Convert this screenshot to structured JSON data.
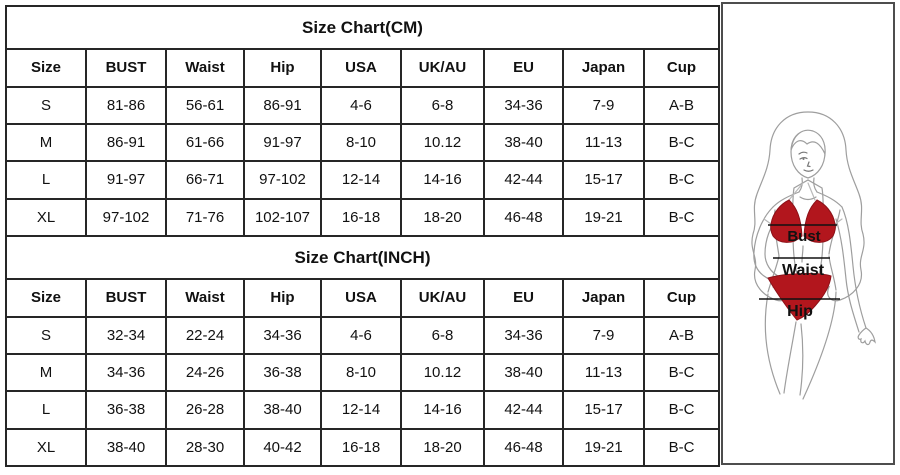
{
  "page": {
    "background": "#ffffff",
    "table_border_color": "#262626",
    "panel_border_color": "#4d4d4d"
  },
  "chart_data": [
    {
      "type": "table",
      "title": "Size Chart(CM)",
      "columns": [
        "Size",
        "BUST",
        "Waist",
        "Hip",
        "USA",
        "UK/AU",
        "EU",
        "Japan",
        "Cup"
      ],
      "rows": [
        [
          "S",
          "81-86",
          "56-61",
          "86-91",
          "4-6",
          "6-8",
          "34-36",
          "7-9",
          "A-B"
        ],
        [
          "M",
          "86-91",
          "61-66",
          "91-97",
          "8-10",
          "10.12",
          "38-40",
          "11-13",
          "B-C"
        ],
        [
          "L",
          "91-97",
          "66-71",
          "97-102",
          "12-14",
          "14-16",
          "42-44",
          "15-17",
          "B-C"
        ],
        [
          "XL",
          "97-102",
          "71-76",
          "102-107",
          "16-18",
          "18-20",
          "46-48",
          "19-21",
          "B-C"
        ]
      ]
    },
    {
      "type": "table",
      "title": "Size Chart(INCH)",
      "columns": [
        "Size",
        "BUST",
        "Waist",
        "Hip",
        "USA",
        "UK/AU",
        "EU",
        "Japan",
        "Cup"
      ],
      "rows": [
        [
          "S",
          "32-34",
          "22-24",
          "34-36",
          "4-6",
          "6-8",
          "34-36",
          "7-9",
          "A-B"
        ],
        [
          "M",
          "34-36",
          "24-26",
          "36-38",
          "8-10",
          "10.12",
          "38-40",
          "11-13",
          "B-C"
        ],
        [
          "L",
          "36-38",
          "26-28",
          "38-40",
          "12-14",
          "14-16",
          "42-44",
          "15-17",
          "B-C"
        ],
        [
          "XL",
          "38-40",
          "28-30",
          "40-42",
          "16-18",
          "18-20",
          "46-48",
          "19-21",
          "B-C"
        ]
      ]
    }
  ],
  "figure": {
    "labels": {
      "bust": "Bust",
      "waist": "Waist",
      "hip": "Hip"
    },
    "bikini_color": "#b2161d",
    "outline_color": "#9e9e9e",
    "measure_line_color": "#111111"
  }
}
